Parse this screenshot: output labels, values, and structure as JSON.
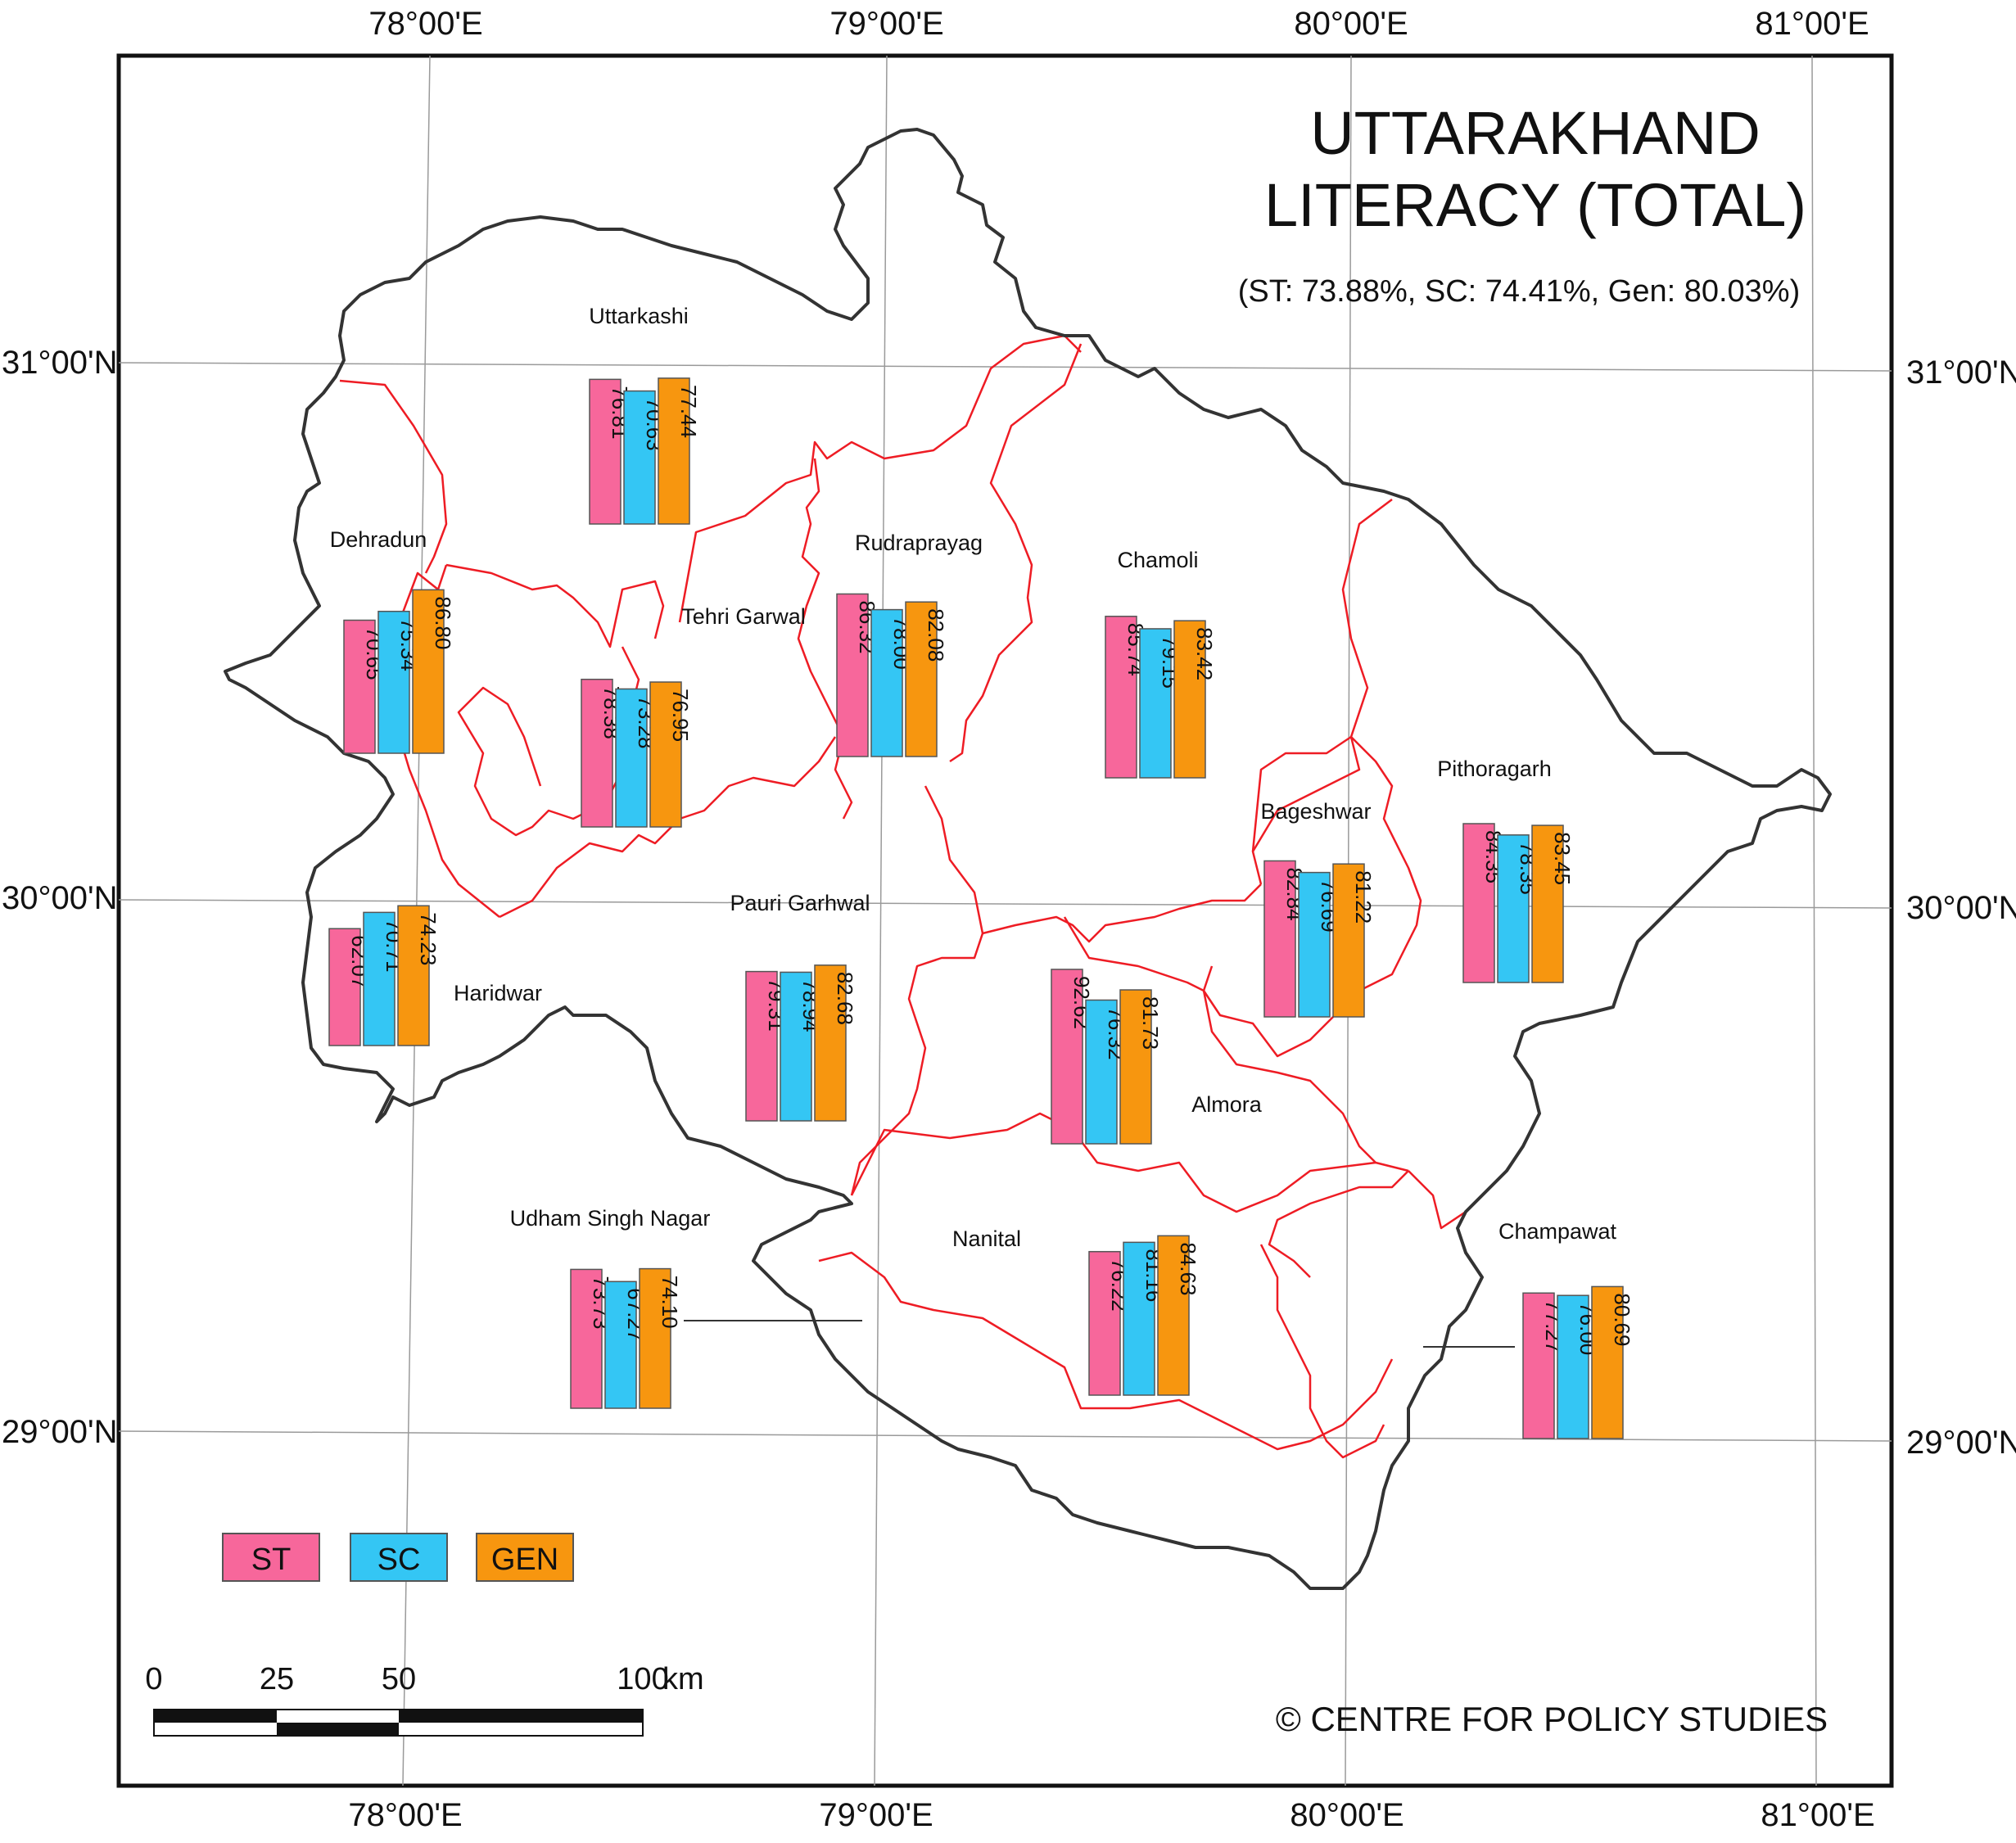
{
  "title_line1": "UTTARAKHAND",
  "title_line2": "LITERACY (TOTAL)",
  "subtitle": "(ST: 73.88%, SC: 74.41%, Gen: 80.03%)",
  "credit": "© CENTRE FOR POLICY STUDIES",
  "colors": {
    "ST": "#f7679b",
    "SC": "#34c6f4",
    "GEN": "#f7960f",
    "boundary": "#333333",
    "district_boundary": "#ee1c24"
  },
  "legend": [
    {
      "key": "ST",
      "label": "ST"
    },
    {
      "key": "SC",
      "label": "SC"
    },
    {
      "key": "GEN",
      "label": "GEN"
    }
  ],
  "longitude_labels": [
    "78°00'E",
    "79°00'E",
    "80°00'E",
    "81°00'E"
  ],
  "latitude_labels": [
    "31°00'N",
    "30°00'N",
    "29°00'N"
  ],
  "scale_bar": {
    "ticks": [
      "0",
      "25",
      "50",
      "100"
    ],
    "unit": "km"
  },
  "chart_data": {
    "type": "bar",
    "title": "UTTARAKHAND LITERACY (TOTAL)",
    "series_names": [
      "ST",
      "SC",
      "GEN"
    ],
    "districts": [
      {
        "name": "Uttarkashi",
        "ST": 76.81,
        "SC": 70.63,
        "GEN": 77.44
      },
      {
        "name": "Dehradun",
        "ST": 70.65,
        "SC": 75.34,
        "GEN": 86.8
      },
      {
        "name": "Tehri Garwal",
        "ST": 78.38,
        "SC": 73.28,
        "GEN": 76.95
      },
      {
        "name": "Rudraprayag",
        "ST": 86.32,
        "SC": 78.0,
        "GEN": 82.08
      },
      {
        "name": "Chamoli",
        "ST": 85.74,
        "SC": 79.15,
        "GEN": 83.42
      },
      {
        "name": "Bageshwar",
        "ST": 82.84,
        "SC": 76.69,
        "GEN": 81.22
      },
      {
        "name": "Pithoragarh",
        "ST": 84.35,
        "SC": 78.35,
        "GEN": 83.45
      },
      {
        "name": "Haridwar",
        "ST": 62.07,
        "SC": 70.71,
        "GEN": 74.23
      },
      {
        "name": "Pauri Garhwal",
        "ST": 79.31,
        "SC": 78.94,
        "GEN": 82.68
      },
      {
        "name": "Almora",
        "ST": 92.62,
        "SC": 76.32,
        "GEN": 81.73
      },
      {
        "name": "Udham Singh Nagar",
        "ST": 73.73,
        "SC": 67.27,
        "GEN": 74.1
      },
      {
        "name": "Nanital",
        "ST": 76.22,
        "SC": 81.16,
        "GEN": 84.63
      },
      {
        "name": "Champawat",
        "ST": 77.27,
        "SC": 76.0,
        "GEN": 80.69
      }
    ]
  }
}
